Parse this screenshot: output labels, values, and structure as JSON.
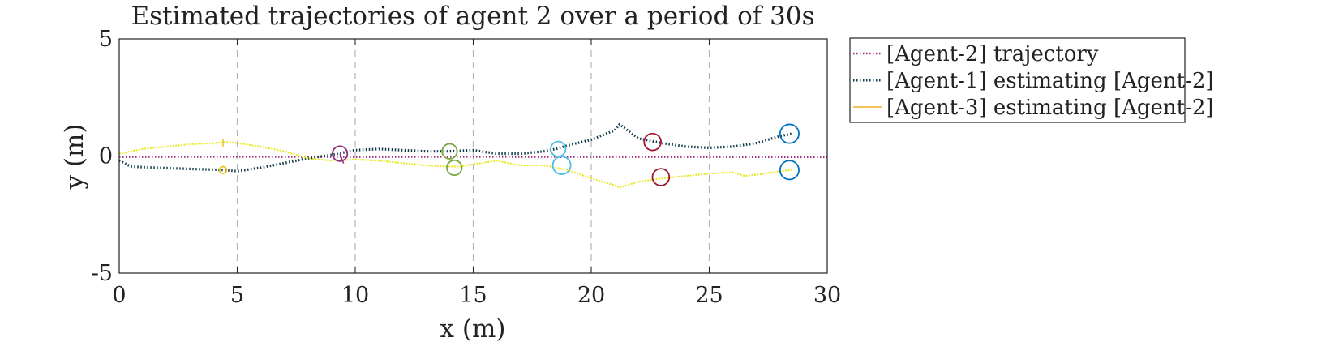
{
  "chart_data": {
    "type": "line",
    "title": "Estimated trajectories of agent 2 over a period of 30s",
    "xlabel": "x (m)",
    "ylabel": "y (m)",
    "xlim": [
      0,
      30
    ],
    "ylim": [
      -5,
      5
    ],
    "xticks": [
      "0",
      "5",
      "10",
      "15",
      "20",
      "25",
      "30"
    ],
    "yticks": [
      "5",
      "0",
      "-5"
    ],
    "grid": "vertical dashed lines at x ticks",
    "legend_position": "outside-top-right",
    "series": [
      {
        "name": "[Agent-2] trajectory",
        "color": "#a0307f",
        "style": "dotted",
        "x": [
          0,
          5,
          10,
          15,
          20,
          25,
          30
        ],
        "y": [
          -0.04,
          -0.03,
          -0.04,
          -0.03,
          -0.04,
          -0.04,
          -0.05
        ]
      },
      {
        "name": "[Agent-1] estimating [Agent-2]",
        "color": "#0d3a4a",
        "style": "dotted",
        "x": [
          0,
          0.5,
          1.5,
          3,
          4.5,
          5,
          6,
          7,
          8,
          9,
          9.5,
          10,
          11,
          12,
          13,
          14,
          15,
          16,
          17,
          18,
          18.5,
          19,
          20,
          21,
          21.2,
          22,
          23,
          24,
          25,
          26,
          27,
          28,
          28.5
        ],
        "y": [
          -0.2,
          -0.45,
          -0.5,
          -0.55,
          -0.6,
          -0.65,
          -0.5,
          -0.3,
          -0.1,
          0.05,
          0.15,
          0.25,
          0.3,
          0.25,
          0.2,
          0.2,
          0.25,
          0.1,
          0.1,
          0.2,
          0.3,
          0.45,
          0.7,
          1.1,
          1.35,
          0.75,
          0.55,
          0.4,
          0.35,
          0.4,
          0.55,
          0.85,
          0.95
        ]
      },
      {
        "name": "[Agent-3] estimating [Agent-2]",
        "color": "#e8e81c",
        "style": "solid",
        "x": [
          0,
          0.5,
          1,
          2,
          3,
          4,
          4.5,
          5,
          6,
          7,
          8,
          9,
          10,
          11,
          12,
          13,
          14,
          14.5,
          15,
          16,
          17,
          18,
          19,
          20,
          21,
          21.2,
          22,
          23,
          24,
          25,
          26,
          26.5,
          27,
          28,
          28.5
        ],
        "y": [
          0.1,
          0.2,
          0.3,
          0.4,
          0.5,
          0.55,
          0.6,
          0.55,
          0.4,
          0.2,
          -0.1,
          -0.2,
          -0.15,
          -0.2,
          -0.3,
          -0.4,
          -0.45,
          -0.45,
          -0.35,
          -0.2,
          -0.4,
          -0.4,
          -0.6,
          -0.95,
          -1.25,
          -1.35,
          -1.1,
          -0.95,
          -0.85,
          -0.75,
          -0.7,
          -0.85,
          -0.8,
          -0.65,
          -0.6
        ]
      }
    ],
    "markers": [
      {
        "x": 9.35,
        "y": 0.1,
        "r": 0.32,
        "color": "#8a2f7a",
        "tail": true
      },
      {
        "x": 14.0,
        "y": 0.2,
        "r": 0.32,
        "color": "#78a840"
      },
      {
        "x": 14.2,
        "y": -0.5,
        "r": 0.32,
        "color": "#78a840"
      },
      {
        "x": 18.6,
        "y": 0.3,
        "r": 0.32,
        "color": "#4fbde6"
      },
      {
        "x": 18.75,
        "y": -0.4,
        "r": 0.38,
        "color": "#4fbde6"
      },
      {
        "x": 22.6,
        "y": 0.6,
        "r": 0.36,
        "color": "#a2142f"
      },
      {
        "x": 22.95,
        "y": -0.9,
        "r": 0.36,
        "color": "#a2142f"
      },
      {
        "x": 28.4,
        "y": 0.95,
        "r": 0.4,
        "color": "#0072bd"
      },
      {
        "x": 28.4,
        "y": -0.6,
        "r": 0.4,
        "color": "#0072bd"
      },
      {
        "x": 4.4,
        "y": -0.6,
        "r": 0.15,
        "color": "#e8c51c"
      }
    ]
  }
}
